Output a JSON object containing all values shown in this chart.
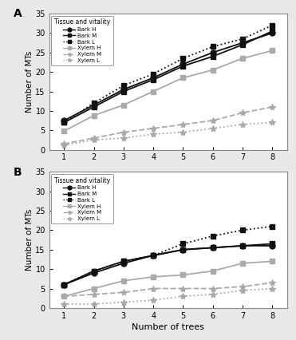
{
  "x": [
    1,
    2,
    3,
    4,
    5,
    6,
    7,
    8
  ],
  "panel_A": {
    "bark_H": [
      7.5,
      11.5,
      15.5,
      18.5,
      22.0,
      25.0,
      27.5,
      30.0
    ],
    "bark_M": [
      7.0,
      11.0,
      15.0,
      18.0,
      21.5,
      24.0,
      27.0,
      30.5
    ],
    "bark_L": [
      7.0,
      12.0,
      16.5,
      19.5,
      23.5,
      26.5,
      28.5,
      32.0
    ],
    "xylem_H": [
      4.8,
      8.8,
      11.5,
      15.0,
      18.5,
      20.5,
      23.5,
      25.5
    ],
    "xylem_M": [
      1.5,
      3.0,
      4.5,
      5.5,
      6.5,
      7.5,
      9.5,
      11.0
    ],
    "xylem_L": [
      1.2,
      2.5,
      3.0,
      4.0,
      4.5,
      5.5,
      6.5,
      7.0
    ]
  },
  "panel_B": {
    "bark_H": [
      6.0,
      9.0,
      11.5,
      13.5,
      15.0,
      15.5,
      16.0,
      16.0
    ],
    "bark_M": [
      6.0,
      9.5,
      12.0,
      13.5,
      15.0,
      15.5,
      16.0,
      16.5
    ],
    "bark_L": [
      6.0,
      9.5,
      12.0,
      13.5,
      16.5,
      18.5,
      20.0,
      21.0
    ],
    "xylem_H": [
      3.0,
      5.0,
      7.0,
      8.0,
      8.5,
      9.5,
      11.5,
      12.0
    ],
    "xylem_M": [
      3.0,
      3.5,
      4.0,
      5.0,
      5.0,
      5.0,
      5.5,
      6.5
    ],
    "xylem_L": [
      1.0,
      1.0,
      1.5,
      2.0,
      3.0,
      3.5,
      4.5,
      5.0
    ]
  },
  "ylim": [
    0,
    35
  ],
  "yticks": [
    0,
    5,
    10,
    15,
    20,
    25,
    30,
    35
  ],
  "xticks": [
    1,
    2,
    3,
    4,
    5,
    6,
    7,
    8
  ],
  "ylabel": "Number of MTs",
  "xlabel": "Number of trees",
  "legend_title": "Tissue and vitality",
  "legend_entries": [
    "Bark H",
    "Bark M",
    "Bark L",
    "Xylem H",
    "Xylem M",
    "Xylem L"
  ],
  "series_keys": [
    "bark_H",
    "bark_M",
    "bark_L",
    "xylem_H",
    "xylem_M",
    "xylem_L"
  ],
  "styles": {
    "bark_H": {
      "color": "#111111",
      "ls": "-",
      "marker": "o",
      "ms": 5.0,
      "mfc": "#111111",
      "lw": 1.3
    },
    "bark_M": {
      "color": "#111111",
      "ls": "-",
      "marker": "s",
      "ms": 4.5,
      "mfc": "#111111",
      "lw": 1.3
    },
    "bark_L": {
      "color": "#111111",
      "ls": ":",
      "marker": "s",
      "ms": 4.5,
      "mfc": "#111111",
      "lw": 1.3
    },
    "xylem_H": {
      "color": "#aaaaaa",
      "ls": "-",
      "marker": "s",
      "ms": 4.5,
      "mfc": "#aaaaaa",
      "lw": 1.3
    },
    "xylem_M": {
      "color": "#aaaaaa",
      "ls": "--",
      "marker": "*",
      "ms": 6.0,
      "mfc": "#aaaaaa",
      "lw": 1.3
    },
    "xylem_L": {
      "color": "#aaaaaa",
      "ls": ":",
      "marker": "*",
      "ms": 6.0,
      "mfc": "#aaaaaa",
      "lw": 1.3
    }
  },
  "bg_color": "#e8e8e8",
  "plot_bg": "#ffffff"
}
